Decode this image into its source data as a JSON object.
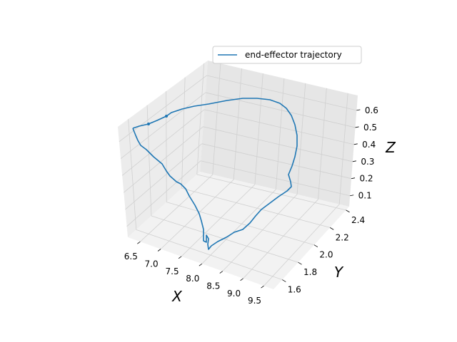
{
  "chart_data": {
    "type": "line3d",
    "title": "",
    "xlabel": "X",
    "ylabel": "Y",
    "zlabel": "Z",
    "xticks": [
      "6.5",
      "7.0",
      "7.5",
      "8.0",
      "8.5",
      "9.0",
      "9.5"
    ],
    "yticks": [
      "1.6",
      "1.8",
      "2.0",
      "2.2",
      "2.4"
    ],
    "zticks": [
      "0.1",
      "0.2",
      "0.3",
      "0.4",
      "0.5",
      "0.6"
    ],
    "grid": true,
    "legend": {
      "placement": "top-right",
      "entries": [
        "end-effector trajectory"
      ]
    },
    "colors": {
      "series": "#1f77b4",
      "pane_left": "#ececec",
      "pane_right": "#e6e6e6",
      "pane_floor": "#f2f2f2",
      "grid": "#d0d0d0"
    },
    "series": [
      {
        "name": "end-effector trajectory",
        "trace": [
          [
            186,
            180
          ],
          [
            195,
            177
          ],
          [
            208,
            174
          ],
          [
            220,
            169
          ],
          [
            233,
            163
          ],
          [
            240,
            158
          ],
          [
            255,
            153
          ],
          [
            272,
            149
          ],
          [
            292,
            146
          ],
          [
            318,
            141
          ],
          [
            340,
            138
          ],
          [
            360,
            138
          ],
          [
            378,
            140
          ],
          [
            392,
            145
          ],
          [
            401,
            152
          ],
          [
            408,
            162
          ],
          [
            413,
            175
          ],
          [
            416,
            190
          ],
          [
            416,
            205
          ],
          [
            413,
            220
          ],
          [
            409,
            233
          ],
          [
            404,
            245
          ],
          [
            407,
            255
          ],
          [
            408,
            262
          ],
          [
            402,
            268
          ],
          [
            390,
            276
          ],
          [
            378,
            285
          ],
          [
            366,
            294
          ],
          [
            358,
            303
          ],
          [
            350,
            313
          ],
          [
            340,
            322
          ],
          [
            328,
            326
          ],
          [
            317,
            333
          ],
          [
            305,
            339
          ],
          [
            296,
            345
          ],
          [
            292,
            350
          ],
          [
            291,
            343
          ],
          [
            292,
            335
          ],
          [
            289,
            330
          ],
          [
            289,
            340
          ],
          [
            285,
            338
          ],
          [
            285,
            322
          ],
          [
            282,
            310
          ],
          [
            279,
            300
          ],
          [
            273,
            288
          ],
          [
            265,
            275
          ],
          [
            260,
            265
          ],
          [
            253,
            258
          ],
          [
            247,
            255
          ],
          [
            238,
            247
          ],
          [
            233,
            240
          ],
          [
            227,
            230
          ],
          [
            215,
            220
          ],
          [
            205,
            210
          ],
          [
            197,
            204
          ],
          [
            193,
            197
          ],
          [
            190,
            190
          ],
          [
            186,
            180
          ]
        ]
      }
    ]
  }
}
